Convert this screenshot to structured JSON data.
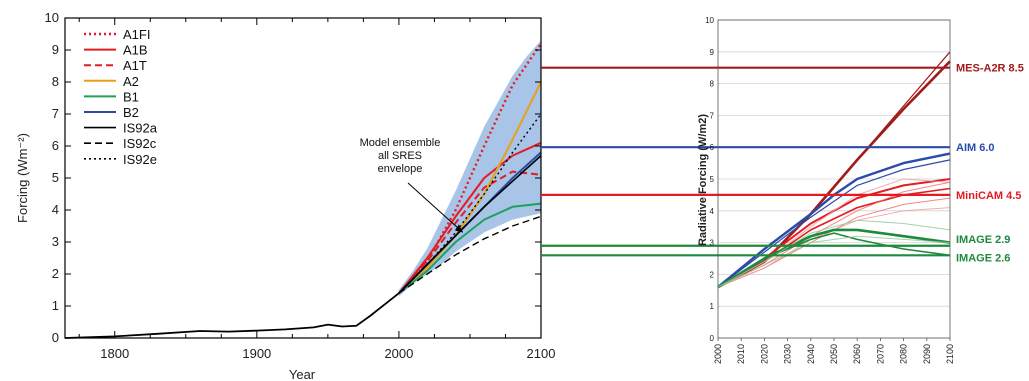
{
  "chart_data": [
    {
      "type": "line",
      "xlabel": "Year",
      "ylabel": "Forcing (Wm⁻²)",
      "xlim": [
        1765,
        2100
      ],
      "ylim": [
        0,
        10
      ],
      "x_ticks": [
        1800,
        1900,
        2000,
        2100
      ],
      "y_ticks": [
        0,
        1,
        2,
        3,
        4,
        5,
        6,
        7,
        8,
        9,
        10
      ],
      "grid": false,
      "legend_position": "top-left",
      "annotation": {
        "lines": [
          "Model ensemble",
          "all SRES",
          "envelope"
        ],
        "arrow_to": [
          2045,
          3.3
        ]
      },
      "envelope": {
        "x": [
          2000,
          2010,
          2020,
          2030,
          2040,
          2050,
          2060,
          2070,
          2080,
          2090,
          2100
        ],
        "upper": [
          1.5,
          2.1,
          2.8,
          3.7,
          4.6,
          5.6,
          6.6,
          7.4,
          8.2,
          8.8,
          9.3
        ],
        "lower": [
          1.3,
          1.7,
          2.0,
          2.3,
          2.7,
          3.0,
          3.3,
          3.5,
          3.7,
          3.8,
          3.9
        ],
        "color": "#a8c4e6"
      },
      "historical": {
        "x": [
          1765,
          1800,
          1830,
          1860,
          1880,
          1900,
          1920,
          1940,
          1950,
          1960,
          1970,
          1980,
          1990,
          2000
        ],
        "y": [
          0.0,
          0.05,
          0.13,
          0.22,
          0.2,
          0.23,
          0.27,
          0.33,
          0.42,
          0.36,
          0.38,
          0.7,
          1.05,
          1.4
        ],
        "color": "#000000"
      },
      "series": [
        {
          "name": "A1FI",
          "color": "#e31b23",
          "dash": "dot",
          "width": 2.4,
          "x": [
            2000,
            2020,
            2040,
            2060,
            2080,
            2100
          ],
          "y": [
            1.4,
            2.4,
            4.0,
            6.0,
            7.9,
            9.2
          ]
        },
        {
          "name": "A1B",
          "color": "#e31b23",
          "dash": "solid",
          "width": 2,
          "x": [
            2000,
            2020,
            2040,
            2060,
            2080,
            2100
          ],
          "y": [
            1.4,
            2.5,
            3.8,
            5.0,
            5.7,
            6.1
          ]
        },
        {
          "name": "A1T",
          "color": "#e31b23",
          "dash": "dash",
          "width": 2,
          "x": [
            2000,
            2020,
            2040,
            2060,
            2080,
            2100
          ],
          "y": [
            1.4,
            2.4,
            3.6,
            4.7,
            5.2,
            5.1
          ]
        },
        {
          "name": "A2",
          "color": "#e8a01b",
          "dash": "solid",
          "width": 2,
          "x": [
            2000,
            2020,
            2040,
            2060,
            2080,
            2100
          ],
          "y": [
            1.4,
            2.2,
            3.2,
            4.5,
            6.2,
            8.0
          ]
        },
        {
          "name": "B1",
          "color": "#1ea05a",
          "dash": "solid",
          "width": 2,
          "x": [
            2000,
            2020,
            2040,
            2060,
            2080,
            2100
          ],
          "y": [
            1.4,
            2.1,
            3.0,
            3.7,
            4.1,
            4.2
          ]
        },
        {
          "name": "B2",
          "color": "#2b4ba8",
          "dash": "solid",
          "width": 2,
          "x": [
            2000,
            2020,
            2040,
            2060,
            2080,
            2100
          ],
          "y": [
            1.4,
            2.3,
            3.2,
            4.1,
            5.0,
            5.8
          ]
        },
        {
          "name": "IS92a",
          "color": "#000000",
          "dash": "solid",
          "width": 1.6,
          "x": [
            2000,
            2020,
            2040,
            2060,
            2080,
            2100
          ],
          "y": [
            1.4,
            2.3,
            3.2,
            4.1,
            4.9,
            5.7
          ]
        },
        {
          "name": "IS92c",
          "color": "#000000",
          "dash": "dash",
          "width": 1.4,
          "x": [
            2000,
            2020,
            2040,
            2060,
            2080,
            2100
          ],
          "y": [
            1.4,
            2.0,
            2.6,
            3.1,
            3.5,
            3.8
          ]
        },
        {
          "name": "IS92e",
          "color": "#000000",
          "dash": "dot",
          "width": 1.4,
          "x": [
            2000,
            2020,
            2040,
            2060,
            2080,
            2100
          ],
          "y": [
            1.4,
            2.3,
            3.3,
            4.5,
            5.8,
            7.0
          ]
        }
      ]
    },
    {
      "type": "line",
      "xlabel": "",
      "ylabel": "Radiative Forcing (W/m2)",
      "xlim": [
        2000,
        2100
      ],
      "ylim": [
        0,
        10
      ],
      "x_ticks": [
        2000,
        2010,
        2020,
        2030,
        2040,
        2050,
        2060,
        2070,
        2080,
        2090,
        2100
      ],
      "y_ticks": [
        0,
        1,
        2,
        3,
        4,
        5,
        6,
        7,
        8,
        9,
        10
      ],
      "grid": true,
      "reference_lines": [
        {
          "label": "MES-A2R 8.5",
          "value": 8.5,
          "color": "#a01c1c"
        },
        {
          "label": "AIM 6.0",
          "value": 6.0,
          "color": "#2b4ba8"
        },
        {
          "label": "MiniCAM 4.5",
          "value": 4.5,
          "color": "#e31b23"
        },
        {
          "label": "IMAGE 2.9",
          "value": 2.9,
          "color": "#1e8a3c"
        },
        {
          "label": "IMAGE 2.6",
          "value": 2.6,
          "color": "#1e8a3c"
        }
      ],
      "series": [
        {
          "color": "#a01c1c",
          "width": 2.6,
          "x": [
            2000,
            2020,
            2040,
            2060,
            2080,
            2100
          ],
          "y": [
            1.6,
            2.4,
            3.9,
            5.6,
            7.2,
            8.7
          ]
        },
        {
          "color": "#a01c1c",
          "width": 1.2,
          "x": [
            2000,
            2020,
            2040,
            2060,
            2080,
            2100
          ],
          "y": [
            1.6,
            2.4,
            3.9,
            5.6,
            7.3,
            9.0
          ]
        },
        {
          "color": "#2b4ba8",
          "width": 2.4,
          "x": [
            2000,
            2020,
            2040,
            2050,
            2060,
            2080,
            2100
          ],
          "y": [
            1.6,
            2.8,
            3.9,
            4.5,
            5.0,
            5.5,
            5.8
          ]
        },
        {
          "color": "#2b4ba8",
          "width": 1.2,
          "x": [
            2000,
            2020,
            2040,
            2050,
            2060,
            2080,
            2100
          ],
          "y": [
            1.6,
            2.7,
            3.8,
            4.3,
            4.8,
            5.3,
            5.6
          ]
        },
        {
          "color": "#e31b23",
          "width": 2,
          "x": [
            2000,
            2020,
            2040,
            2060,
            2080,
            2100
          ],
          "y": [
            1.6,
            2.5,
            3.6,
            4.4,
            4.8,
            5.0
          ]
        },
        {
          "color": "#e31b23",
          "width": 1.6,
          "x": [
            2000,
            2020,
            2040,
            2060,
            2080,
            2100
          ],
          "y": [
            1.6,
            2.4,
            3.4,
            4.1,
            4.5,
            4.7
          ]
        },
        {
          "color": "#ee6a6a",
          "width": 1,
          "x": [
            2000,
            2020,
            2040,
            2060,
            2080,
            2100
          ],
          "y": [
            1.6,
            2.3,
            3.2,
            4.0,
            4.6,
            4.9
          ]
        },
        {
          "color": "#ee6a6a",
          "width": 1,
          "x": [
            2000,
            2020,
            2040,
            2060,
            2080,
            2100
          ],
          "y": [
            1.6,
            2.2,
            3.0,
            3.8,
            4.2,
            4.4
          ]
        },
        {
          "color": "#f09a9a",
          "width": 1,
          "x": [
            2000,
            2020,
            2040,
            2060,
            2080,
            2100
          ],
          "y": [
            1.6,
            2.4,
            3.5,
            4.5,
            5.0,
            4.9
          ]
        },
        {
          "color": "#f09a9a",
          "width": 1,
          "x": [
            2000,
            2020,
            2040,
            2060,
            2080,
            2100
          ],
          "y": [
            1.6,
            2.2,
            3.1,
            3.7,
            4.0,
            4.1
          ]
        },
        {
          "color": "#1e8a3c",
          "width": 2.6,
          "x": [
            2000,
            2020,
            2040,
            2050,
            2060,
            2080,
            2100
          ],
          "y": [
            1.6,
            2.5,
            3.2,
            3.4,
            3.4,
            3.2,
            3.0
          ]
        },
        {
          "color": "#1e8a3c",
          "width": 1.6,
          "x": [
            2000,
            2020,
            2040,
            2050,
            2060,
            2080,
            2100
          ],
          "y": [
            1.6,
            2.5,
            3.1,
            3.3,
            3.1,
            2.8,
            2.6
          ]
        },
        {
          "color": "#8fc79b",
          "width": 1,
          "x": [
            2000,
            2020,
            2040,
            2060,
            2080,
            2100
          ],
          "y": [
            1.6,
            2.4,
            3.3,
            3.7,
            3.6,
            3.4
          ]
        },
        {
          "color": "#8fc79b",
          "width": 1,
          "x": [
            2000,
            2020,
            2040,
            2060,
            2080,
            2100
          ],
          "y": [
            1.6,
            2.3,
            3.0,
            3.2,
            3.1,
            3.0
          ]
        }
      ]
    }
  ]
}
